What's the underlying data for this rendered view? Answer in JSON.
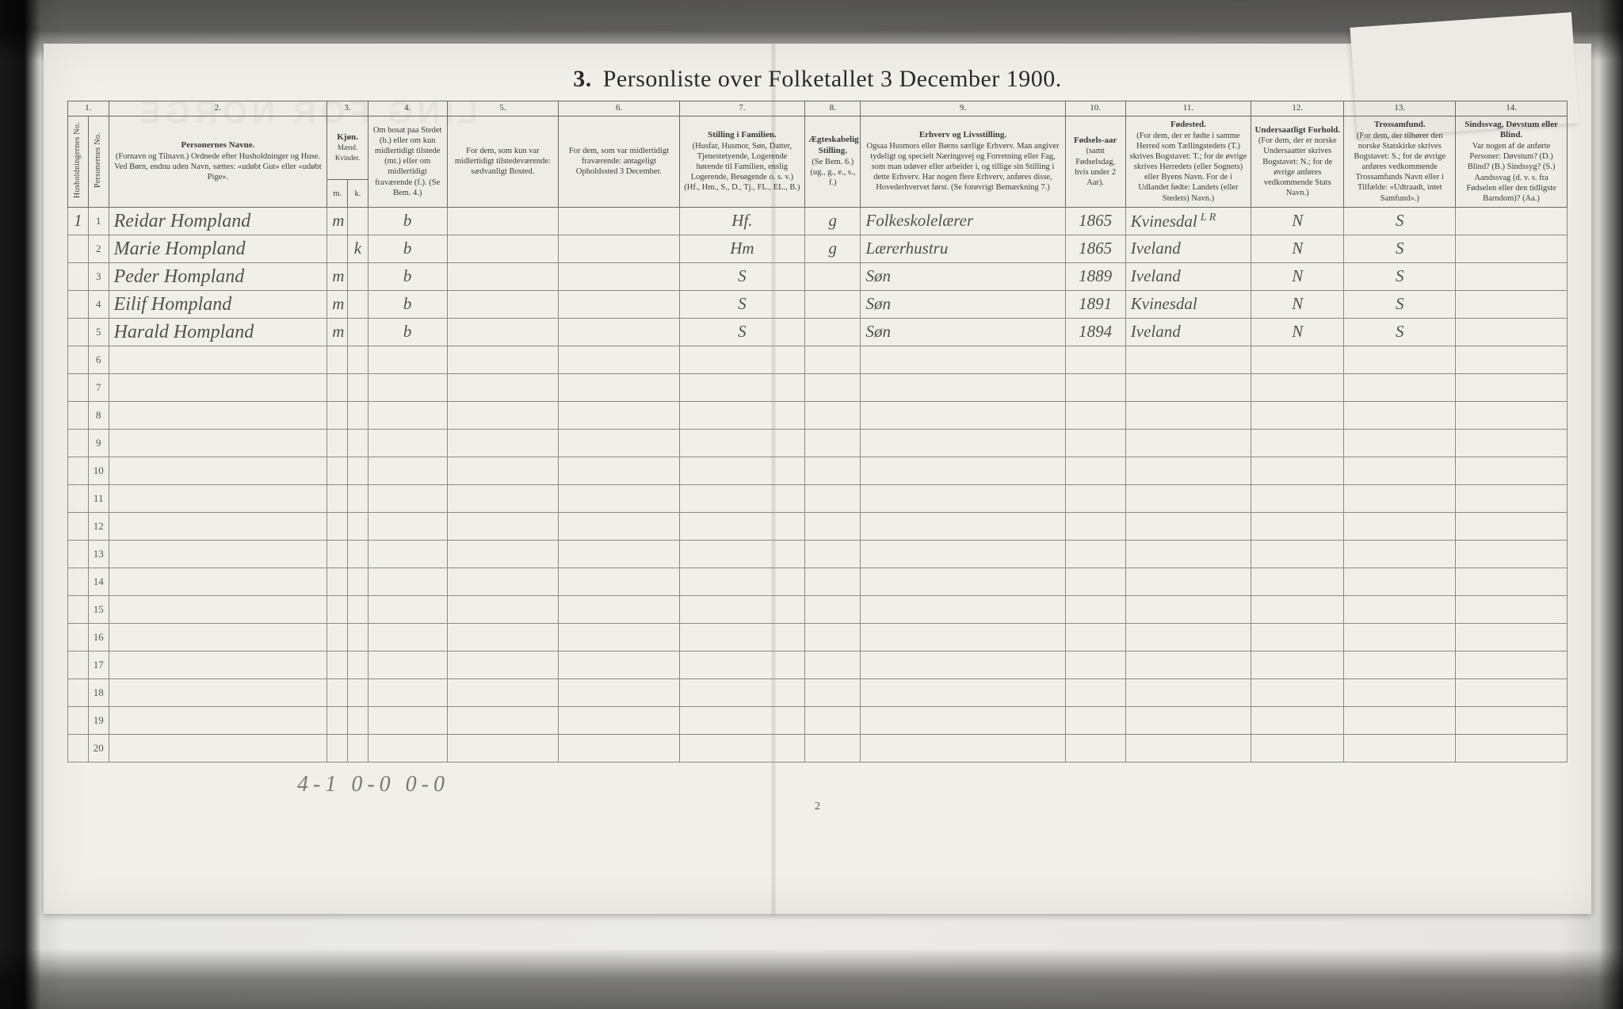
{
  "title_prefix": "3.",
  "title": "Personliste over Folketallet 3 December 1900.",
  "ghost_text": "LING FOR NORGE",
  "colnums": [
    "1.",
    "2.",
    "3.",
    "4.",
    "5.",
    "6.",
    "7.",
    "8.",
    "9.",
    "10.",
    "11.",
    "12.",
    "13.",
    "14."
  ],
  "headers": {
    "c1a": "Husholdningernes No.",
    "c1b": "Personernes No.",
    "c2_b": "Personernes Navne.",
    "c2": "(Fornavn og Tilnavn.) Ordnede efter Husholdninger og Huse. Ved Børn, endnu uden Navn, sættes: «udøbt Gut» eller «udøbt Pige».",
    "c3_b": "Kjøn.",
    "c3": "Mænd. Kvinder.",
    "c3a": "m.",
    "c3b": "k.",
    "c4": "Om bosat paa Stedet (b.) eller om kun midlertidigt tilstede (mt.) eller om midlertidigt fraværende (f.). (Se Bem. 4.)",
    "c5": "For dem, som kun var midlertidigt tilstedeværende: sædvanligt Bosted.",
    "c6": "For dem, som var midlertidigt fraværende: antageligt Opholdssted 3 December.",
    "c7_b": "Stilling i Familien.",
    "c7": "(Husfar, Husmor, Søn, Datter, Tjenestetyende, Logerende hørende til Familien, enslig Logerende, Besøgende o. s. v.) (Hf., Hm., S., D., Tj., FL., EL., B.)",
    "c8_b": "Ægteskabelig Stilling.",
    "c8": "(Se Bem. 6.) (ug., g., e., s., f.)",
    "c9_b": "Erhverv og Livsstilling.",
    "c9": "Ogsaa Husmors eller Børns særlige Erhverv. Man angiver tydeligt og specielt Næringsvej og Forretning eller Fag, som man udøver eller arbeider i, og tillige sin Stilling i dette Erhverv. Har nogen flere Erhverv, anføres disse, Hovederhvervet først. (Se forøvrigt Bemærkning 7.)",
    "c10_b": "Fødsels-aar",
    "c10": "(samt Fødselsdag, hvis under 2 Aar).",
    "c11_b": "Fødested.",
    "c11": "(For dem, der er fødte i samme Herred som Tællingstedets (T.) skrives Bogstavet: T.; for de øvrige skrives Herredets (eller Sognets) eller Byens Navn. For de i Udlandet fødte: Landets (eller Stedets) Navn.)",
    "c12_b": "Undersaatligt Forhold.",
    "c12": "(For dem, der er norske Undersaatter skrives Bogstavet: N.; for de øvrige anføres vedkommende Stats Navn.)",
    "c13_b": "Trossamfund.",
    "c13": "(For dem, der tilhører den norske Statskirke skrives Bogstavet: S.; for de øvrige anføres vedkommende Trossamfunds Navn eller i Tilfælde: «Udtraadt, intet Samfund».)",
    "c14_b": "Sindssvag, Døvstum eller Blind.",
    "c14": "Var nogen af de anførte Personer: Døvstum? (D.) Blind? (B.) Sindssyg? (S.) Aandssvag (d. v. s. fra Fødselen eller den tidligste Barndom)? (Aa.)"
  },
  "rows": [
    {
      "hh": "1",
      "p": "1",
      "name": "Reidar Hompland",
      "m": "m",
      "k": "",
      "res": "b",
      "c5": "",
      "c6": "",
      "fam": "Hf.",
      "civ": "g",
      "occ": "Folkeskolelærer",
      "year": "1865",
      "birthplace": "Kvinesdal",
      "note": "L R",
      "nat": "N",
      "rel": "S",
      "c14": ""
    },
    {
      "hh": "",
      "p": "2",
      "name": "Marie Hompland",
      "m": "",
      "k": "k",
      "res": "b",
      "c5": "",
      "c6": "",
      "fam": "Hm",
      "civ": "g",
      "occ": "Lærerhustru",
      "year": "1865",
      "birthplace": "Iveland",
      "note": "",
      "nat": "N",
      "rel": "S",
      "c14": ""
    },
    {
      "hh": "",
      "p": "3",
      "name": "Peder Hompland",
      "m": "m",
      "k": "",
      "res": "b",
      "c5": "",
      "c6": "",
      "fam": "S",
      "civ": "",
      "occ": "Søn",
      "year": "1889",
      "birthplace": "Iveland",
      "note": "",
      "nat": "N",
      "rel": "S",
      "c14": ""
    },
    {
      "hh": "",
      "p": "4",
      "name": "Eilif Hompland",
      "m": "m",
      "k": "",
      "res": "b",
      "c5": "",
      "c6": "",
      "fam": "S",
      "civ": "",
      "occ": "Søn",
      "year": "1891",
      "birthplace": "Kvinesdal",
      "note": "",
      "nat": "N",
      "rel": "S",
      "c14": ""
    },
    {
      "hh": "",
      "p": "5",
      "name": "Harald Hompland",
      "m": "m",
      "k": "",
      "res": "b",
      "c5": "",
      "c6": "",
      "fam": "S",
      "civ": "",
      "occ": "Søn",
      "year": "1894",
      "birthplace": "Iveland",
      "note": "",
      "nat": "N",
      "rel": "S",
      "c14": ""
    }
  ],
  "blank_rows": [
    "6",
    "7",
    "8",
    "9",
    "10",
    "11",
    "12",
    "13",
    "14",
    "15",
    "16",
    "17",
    "18",
    "19",
    "20"
  ],
  "footer_tally": "4-1   0-0   0-0",
  "page_number": "2",
  "colors": {
    "paper": "#f0efe9",
    "ink": "#3a3a3a",
    "handwriting": "#52514c",
    "border": "#6a6a66"
  }
}
